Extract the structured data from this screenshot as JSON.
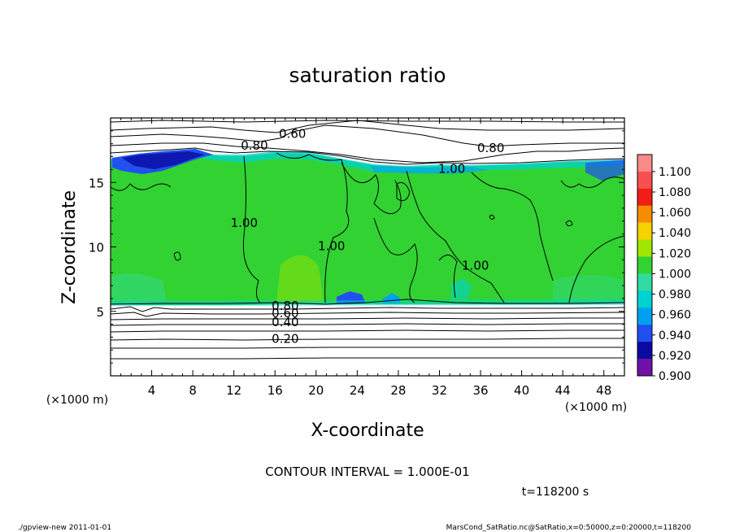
{
  "chart_data": {
    "type": "heatmap",
    "title": "saturation ratio",
    "xlabel": "X-coordinate",
    "ylabel": "Z-coordinate",
    "x_unit": "(×1000 m)",
    "y_unit": "(×1000 m)",
    "xlim": [
      0,
      50
    ],
    "ylim": [
      0,
      20
    ],
    "x_ticks": [
      4,
      8,
      12,
      16,
      20,
      24,
      28,
      32,
      36,
      40,
      44,
      48
    ],
    "y_ticks": [
      5,
      10,
      15
    ],
    "colorbar": {
      "levels": [
        1.1,
        1.08,
        1.06,
        1.04,
        1.02,
        1.0,
        0.98,
        0.96,
        0.94,
        0.92,
        0.9
      ],
      "labels": [
        "1.100",
        "1.080",
        "1.060",
        "1.040",
        "1.020",
        "1.000",
        "0.980",
        "0.960",
        "0.940",
        "0.920",
        "0.900"
      ],
      "colors": [
        "#fb8a8a",
        "#f85050",
        "#f01e14",
        "#f88c00",
        "#f5d200",
        "#a0e600",
        "#32d232",
        "#32dca0",
        "#00d2d2",
        "#00a0f0",
        "#2050f0",
        "#0a0aa0",
        "#7010a8"
      ]
    },
    "contour_labels": [
      {
        "text": "0.60",
        "x": 17.7,
        "z": 18.7
      },
      {
        "text": "0.80",
        "x": 14.0,
        "z": 17.8
      },
      {
        "text": "0.80",
        "x": 37.0,
        "z": 17.6
      },
      {
        "text": "1.00",
        "x": 33.2,
        "z": 16.0
      },
      {
        "text": "1.00",
        "x": 13.0,
        "z": 11.8
      },
      {
        "text": "1.00",
        "x": 21.5,
        "z": 10.0
      },
      {
        "text": "1.00",
        "x": 35.5,
        "z": 8.5
      },
      {
        "text": "0.80",
        "x": 17.0,
        "z": 5.35
      },
      {
        "text": "0.60",
        "x": 17.0,
        "z": 4.8
      },
      {
        "text": "0.40",
        "x": 17.0,
        "z": 4.1
      },
      {
        "text": "0.20",
        "x": 17.0,
        "z": 2.8
      }
    ],
    "contour_interval_text": "CONTOUR INTERVAL = 1.000E-01",
    "time_text": "t=118200 s"
  },
  "footer": {
    "left": "./gpview-new  2011-01-01",
    "right": "MarsCond_SatRatio.nc@SatRatio,x=0:50000,z=0:20000,t=118200"
  },
  "colors": {
    "background": "#ffffff",
    "main_field": "#32d232",
    "frame": "#000000"
  }
}
